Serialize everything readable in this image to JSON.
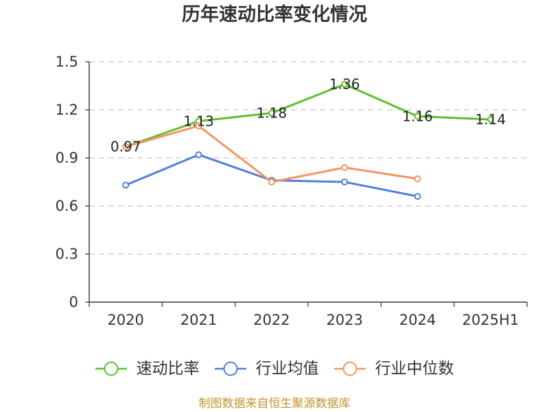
{
  "chart_data": {
    "type": "line",
    "title": "历年速动比率变化情况",
    "categories": [
      "2020",
      "2021",
      "2022",
      "2023",
      "2024",
      "2025H1"
    ],
    "ylim": [
      0,
      1.5
    ],
    "yticks": [
      "0",
      "0.3",
      "0.6",
      "0.9",
      "1.2",
      "1.5"
    ],
    "grid": true,
    "legend_position": "bottom",
    "series": [
      {
        "name": "速动比率",
        "color": "#5ec02b",
        "values": [
          0.97,
          1.13,
          1.18,
          1.36,
          1.16,
          1.14
        ],
        "data_labels": [
          "0.97",
          "1.13",
          "1.18",
          "1.36",
          "1.16",
          "1.14"
        ]
      },
      {
        "name": "行业均值",
        "color": "#4f7fd8",
        "values": [
          0.73,
          0.92,
          0.76,
          0.75,
          0.66,
          null
        ]
      },
      {
        "name": "行业中位数",
        "color": "#f79360",
        "values": [
          0.97,
          1.1,
          0.75,
          0.84,
          0.77,
          null
        ]
      }
    ]
  },
  "source_note": "制图数据来自恒生聚源数据库"
}
